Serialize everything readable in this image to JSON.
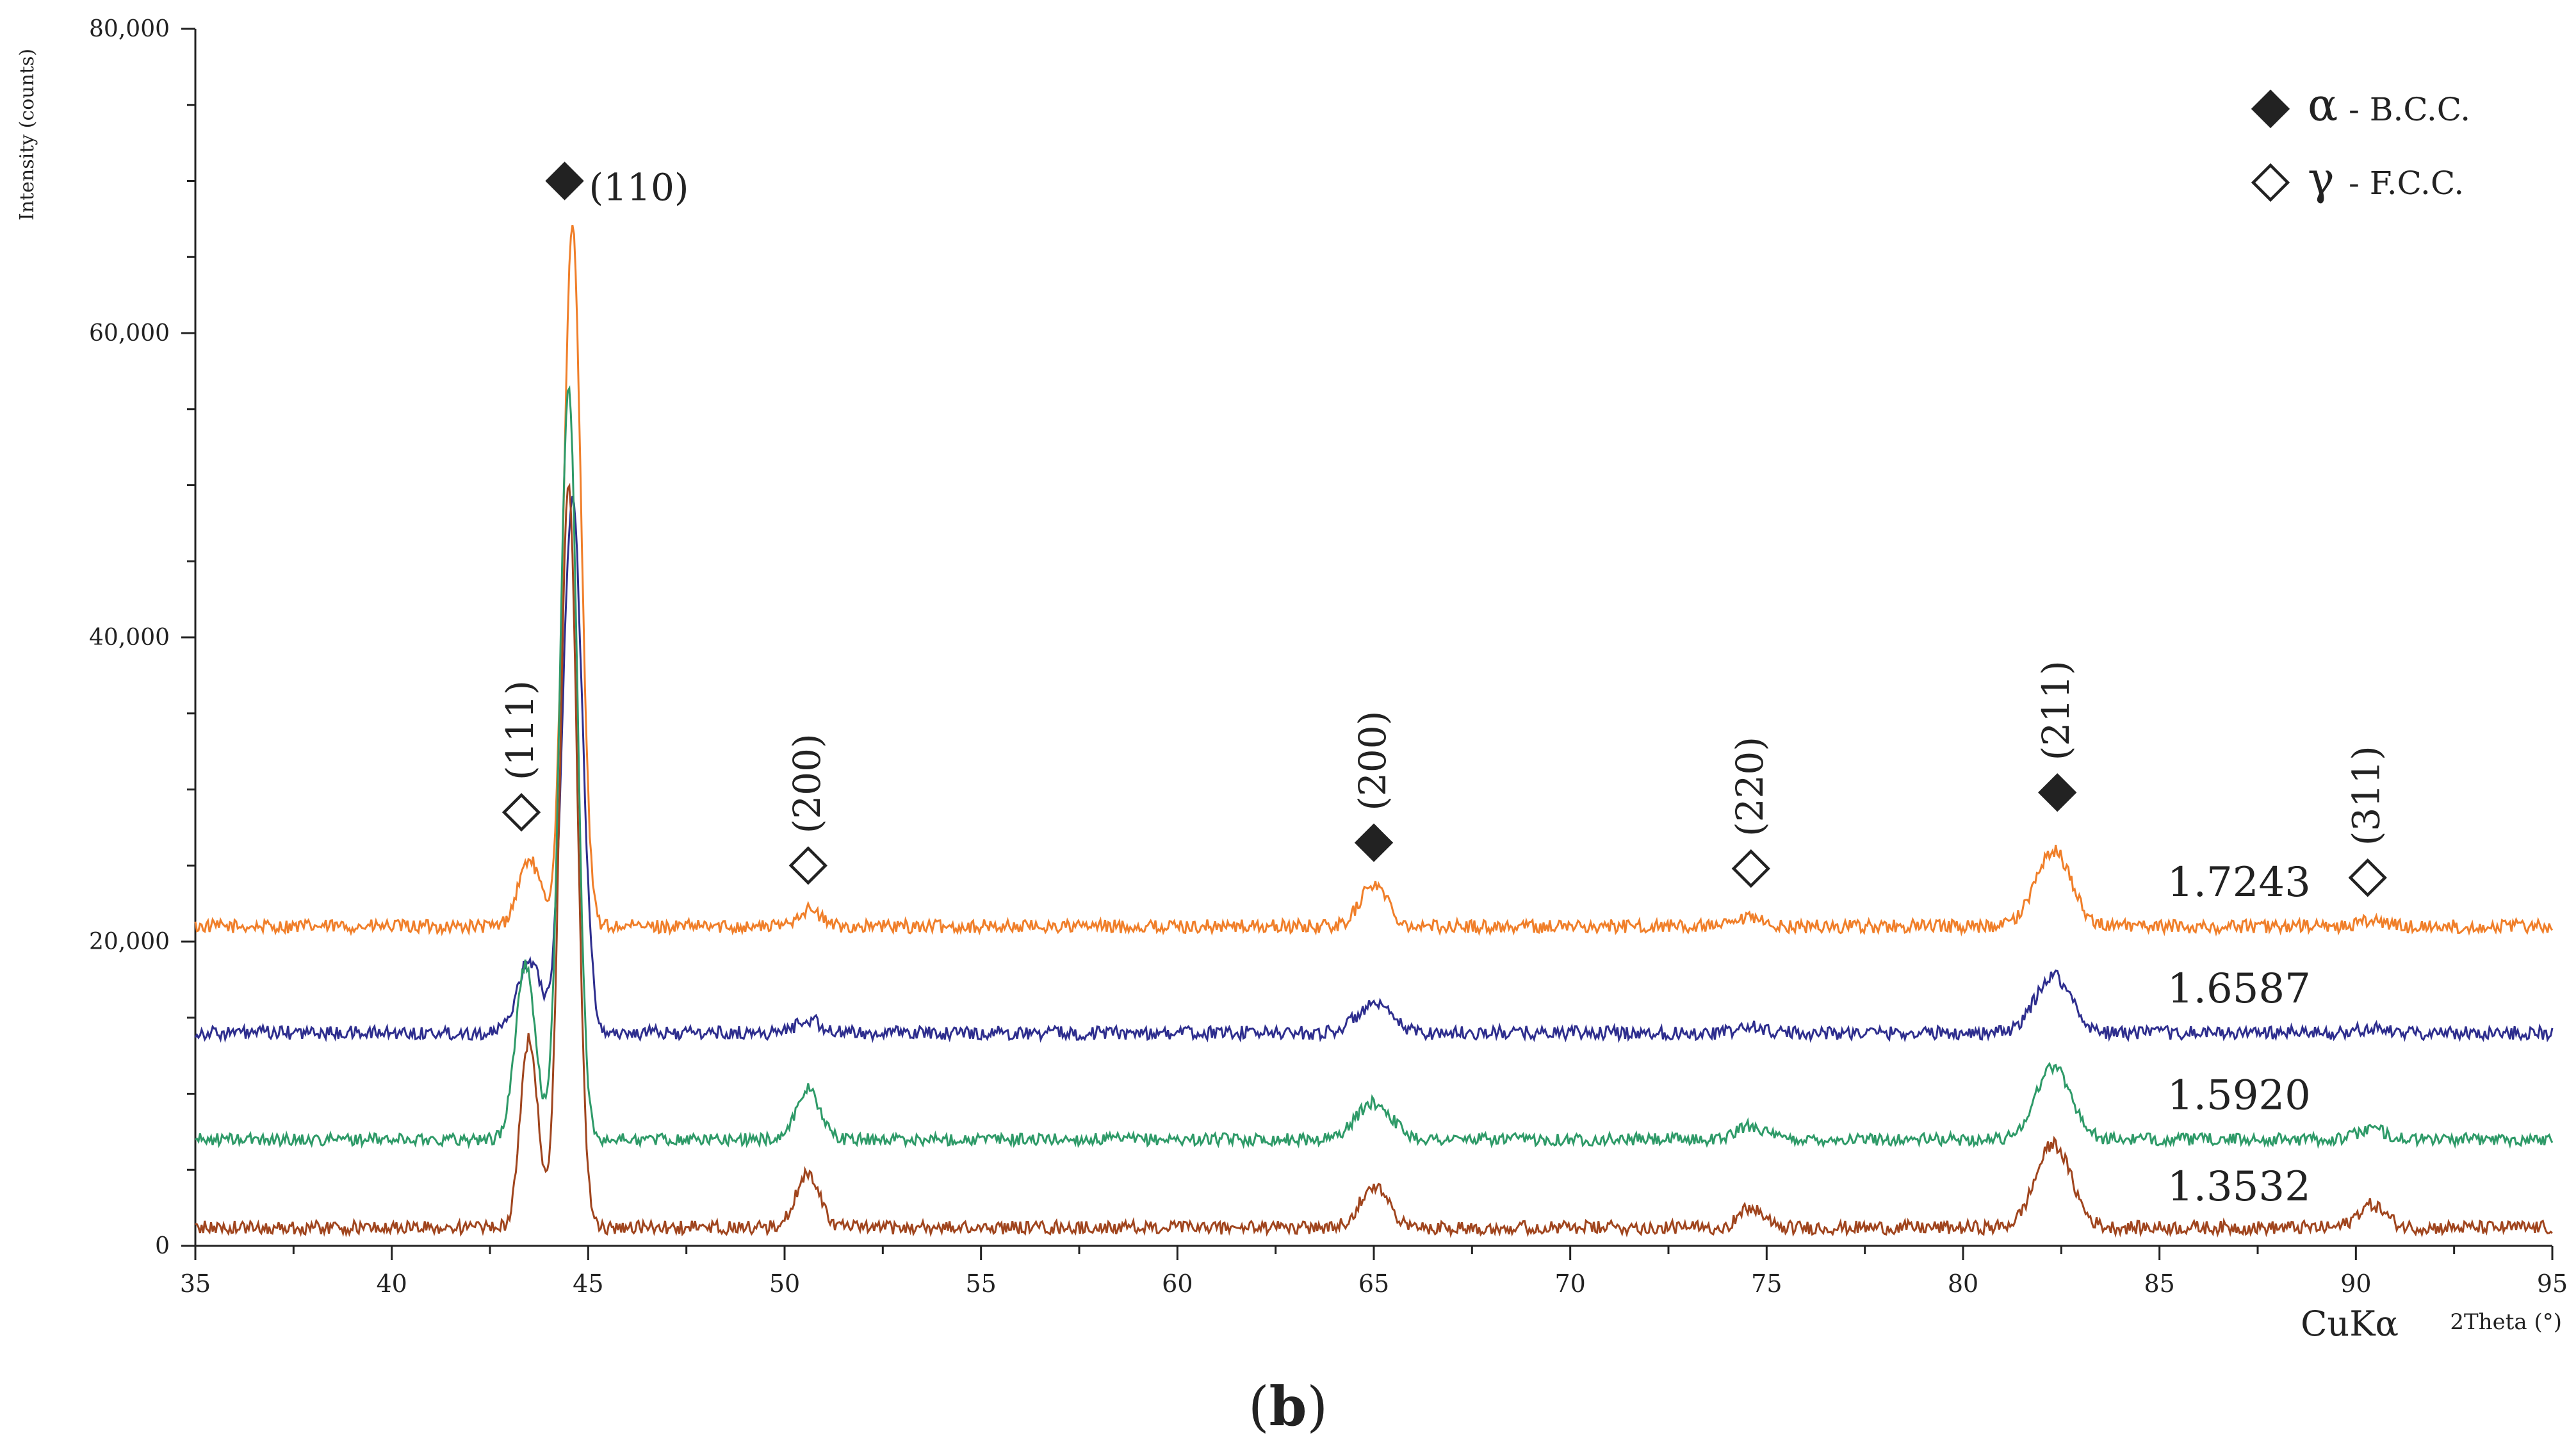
{
  "chart_data": {
    "type": "line",
    "ylabel": "Intensity (counts)",
    "xlabel": "2Theta (°)",
    "xlabel_extra": "CuKα",
    "caption": {
      "open": "(",
      "bold": "b",
      "close": ")"
    },
    "xlim": [
      35,
      95
    ],
    "ylim": [
      0,
      80000
    ],
    "xticks": [
      35,
      40,
      45,
      50,
      55,
      60,
      65,
      70,
      75,
      80,
      85,
      90,
      95
    ],
    "yticks": [
      0,
      20000,
      40000,
      60000,
      80000
    ],
    "ytick_labels": [
      "0",
      "20,000",
      "40,000",
      "60,000",
      "80,000"
    ],
    "series": [
      {
        "name": "1.7243",
        "color": "#F07F2A",
        "baseline": 21000,
        "noise": 450,
        "peaks": [
          [
            43.5,
            4400,
            0.28
          ],
          [
            44.6,
            46000,
            0.22
          ],
          [
            50.6,
            1100,
            0.3
          ],
          [
            65.0,
            2800,
            0.35
          ],
          [
            74.6,
            500,
            0.3
          ],
          [
            82.3,
            5000,
            0.45
          ],
          [
            90.4,
            400,
            0.3
          ]
        ]
      },
      {
        "name": "1.6587",
        "color": "#2E2E8E",
        "baseline": 14000,
        "noise": 450,
        "peaks": [
          [
            43.5,
            4800,
            0.3
          ],
          [
            44.6,
            35000,
            0.25
          ],
          [
            50.6,
            900,
            0.3
          ],
          [
            65.0,
            1800,
            0.45
          ],
          [
            74.6,
            400,
            0.3
          ],
          [
            82.3,
            3800,
            0.45
          ],
          [
            90.4,
            300,
            0.3
          ]
        ]
      },
      {
        "name": "1.5920",
        "color": "#2E9A68",
        "baseline": 7000,
        "noise": 400,
        "peaks": [
          [
            43.4,
            11500,
            0.25
          ],
          [
            44.5,
            49500,
            0.22
          ],
          [
            50.6,
            3300,
            0.3
          ],
          [
            65.0,
            2400,
            0.45
          ],
          [
            74.6,
            900,
            0.35
          ],
          [
            82.3,
            4800,
            0.45
          ],
          [
            90.4,
            700,
            0.35
          ]
        ]
      },
      {
        "name": "1.3532",
        "color": "#A0451E",
        "baseline": 1200,
        "noise": 450,
        "peaks": [
          [
            43.5,
            12500,
            0.22
          ],
          [
            44.5,
            49000,
            0.22
          ],
          [
            50.6,
            3600,
            0.3
          ],
          [
            65.0,
            2800,
            0.35
          ],
          [
            74.6,
            1300,
            0.3
          ],
          [
            82.3,
            5500,
            0.45
          ],
          [
            90.4,
            1500,
            0.35
          ]
        ]
      }
    ],
    "peak_annotations": [
      {
        "label": "(111)",
        "phase": "gamma",
        "x": 43.3,
        "y": 28500,
        "orientation": "vertical"
      },
      {
        "label": "(110)",
        "phase": "alpha",
        "x": 44.4,
        "y": 70000,
        "orientation": "horizontal"
      },
      {
        "label": "(200)",
        "phase": "gamma",
        "x": 50.6,
        "y": 25000,
        "orientation": "vertical"
      },
      {
        "label": "(200)",
        "phase": "alpha",
        "x": 65.0,
        "y": 26500,
        "orientation": "vertical"
      },
      {
        "label": "(220)",
        "phase": "gamma",
        "x": 74.6,
        "y": 24800,
        "orientation": "vertical"
      },
      {
        "label": "(211)",
        "phase": "alpha",
        "x": 82.4,
        "y": 29800,
        "orientation": "vertical"
      },
      {
        "label": "(311)",
        "phase": "gamma",
        "x": 90.3,
        "y": 24200,
        "orientation": "vertical"
      }
    ],
    "series_label_positions": [
      {
        "name": "1.7243",
        "x": 85.2,
        "y": 23000
      },
      {
        "name": "1.6587",
        "x": 85.2,
        "y": 16000
      },
      {
        "name": "1.5920",
        "x": 85.2,
        "y": 9000
      },
      {
        "name": "1.3532",
        "x": 85.2,
        "y": 3000
      }
    ],
    "legend": {
      "position": "top-right",
      "entries": [
        {
          "marker": "filled-diamond",
          "symbol": "α",
          "text": "- B.C.C."
        },
        {
          "marker": "open-diamond",
          "symbol": "γ",
          "text": "- F.C.C."
        }
      ]
    }
  }
}
